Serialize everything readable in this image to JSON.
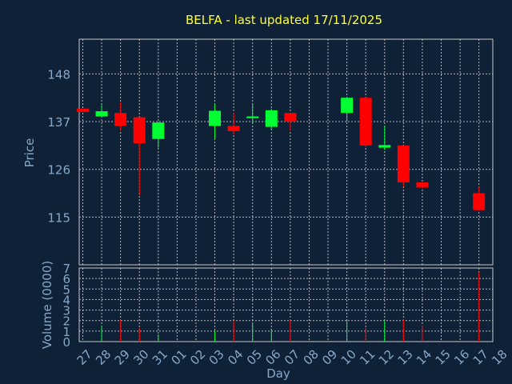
{
  "chart_data": {
    "type": "candlestick",
    "title": "BELFA - last updated 17/11/2025",
    "xlabel": "Day",
    "price_panel": {
      "ylabel": "Price",
      "ylim": [
        104,
        156
      ],
      "yticks": [
        115,
        126,
        137,
        148
      ]
    },
    "volume_panel": {
      "ylabel": "Volume (0000)",
      "ylim": [
        0,
        7
      ],
      "yticks": [
        0,
        1,
        2,
        3,
        4,
        5,
        6,
        7
      ]
    },
    "x_ticks": [
      "27",
      "28",
      "29",
      "30",
      "31",
      "01",
      "02",
      "03",
      "04",
      "05",
      "06",
      "07",
      "08",
      "09",
      "10",
      "11",
      "12",
      "13",
      "14",
      "15",
      "16",
      "17",
      "18"
    ],
    "up_color": "#00ff33",
    "down_color": "#ff0000",
    "grid": true,
    "candles": [
      {
        "day": "27",
        "open": 140.0,
        "high": 140.0,
        "low": 139.2,
        "close": 139.2,
        "volume": 0.2
      },
      {
        "day": "28",
        "open": 138.2,
        "high": 141.0,
        "low": 138.0,
        "close": 139.4,
        "volume": 1.5
      },
      {
        "day": "29",
        "open": 139.0,
        "high": 141.5,
        "low": 135.0,
        "close": 136.0,
        "volume": 2.1
      },
      {
        "day": "30",
        "open": 138.0,
        "high": 138.0,
        "low": 120.0,
        "close": 132.0,
        "volume": 1.3
      },
      {
        "day": "31",
        "open": 133.0,
        "high": 137.0,
        "low": 131.0,
        "close": 136.8,
        "volume": 0.7
      },
      {
        "day": "03",
        "open": 136.0,
        "high": 141.0,
        "low": 133.0,
        "close": 139.5,
        "volume": 1.0
      },
      {
        "day": "04",
        "open": 136.0,
        "high": 139.0,
        "low": 134.0,
        "close": 134.8,
        "volume": 2.0
      },
      {
        "day": "05",
        "open": 137.8,
        "high": 141.0,
        "low": 136.5,
        "close": 138.2,
        "volume": 1.7
      },
      {
        "day": "06",
        "open": 135.8,
        "high": 140.0,
        "low": 135.0,
        "close": 139.6,
        "volume": 1.2
      },
      {
        "day": "07",
        "open": 139.0,
        "high": 139.0,
        "low": 135.0,
        "close": 137.0,
        "volume": 2.1
      },
      {
        "day": "10",
        "open": 139.0,
        "high": 142.5,
        "low": 137.0,
        "close": 142.5,
        "volume": 2.0
      },
      {
        "day": "11",
        "open": 142.5,
        "high": 142.5,
        "low": 131.0,
        "close": 131.5,
        "volume": 1.3
      },
      {
        "day": "12",
        "open": 131.0,
        "high": 136.0,
        "low": 130.5,
        "close": 131.6,
        "volume": 2.0
      },
      {
        "day": "13",
        "open": 131.5,
        "high": 131.5,
        "low": 122.0,
        "close": 123.0,
        "volume": 2.1
      },
      {
        "day": "14",
        "open": 123.0,
        "high": 123.0,
        "low": 121.5,
        "close": 121.8,
        "volume": 1.5
      },
      {
        "day": "17",
        "open": 120.5,
        "high": 122.0,
        "low": 116.5,
        "close": 116.6,
        "volume": 6.6
      }
    ]
  }
}
